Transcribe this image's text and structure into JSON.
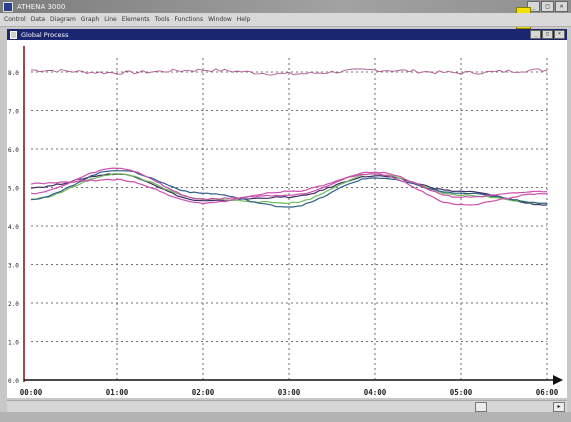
{
  "window": {
    "title": "ATHENA 3000",
    "controls": [
      "_",
      "□",
      "×"
    ]
  },
  "menu": {
    "items": [
      "Control",
      "Data",
      "Diagram",
      "Graph",
      "Line",
      "Elements",
      "Tools",
      "Functions",
      "Window",
      "Help"
    ]
  },
  "document": {
    "title": "Global Process",
    "controls": [
      "_",
      "□",
      "×"
    ]
  },
  "colors": {
    "titlebar": "#8f8f8f",
    "docbar": "#1b2670",
    "plot_background": "#ffffff",
    "status_chip": "#f3e200",
    "series_pink": "#b0588f",
    "series_dark": "#3c2f64",
    "series_green": "#6fba59",
    "series_blue": "#2f5e85",
    "series_magenta": "#cc4fae"
  },
  "chart_data": {
    "type": "line",
    "x": [
      "00:00",
      "01:00",
      "02:00",
      "03:00",
      "04:00",
      "05:00",
      "06:00"
    ],
    "y_tick_labels": [
      "0.0",
      "1.0",
      "2.0",
      "3.0",
      "4.0",
      "5.0",
      "6.0",
      "7.0",
      "8.0"
    ],
    "ylim": [
      0,
      8
    ],
    "grid": true,
    "series": [
      {
        "values": [
          8.05,
          7.98,
          8.05,
          7.95,
          8.05,
          7.98,
          8.05
        ]
      },
      {
        "values": [
          5.0,
          5.35,
          4.65,
          4.75,
          5.3,
          4.9,
          4.55
        ]
      },
      {
        "values": [
          4.7,
          5.35,
          4.7,
          4.6,
          5.35,
          4.8,
          4.6
        ]
      },
      {
        "values": [
          4.7,
          5.45,
          4.85,
          4.5,
          5.25,
          4.85,
          4.6
        ]
      },
      {
        "values": [
          4.85,
          5.5,
          4.7,
          4.8,
          5.4,
          4.75,
          4.9
        ]
      },
      {
        "values": [
          5.1,
          5.2,
          4.6,
          4.9,
          5.35,
          4.55,
          4.85
        ]
      }
    ]
  }
}
